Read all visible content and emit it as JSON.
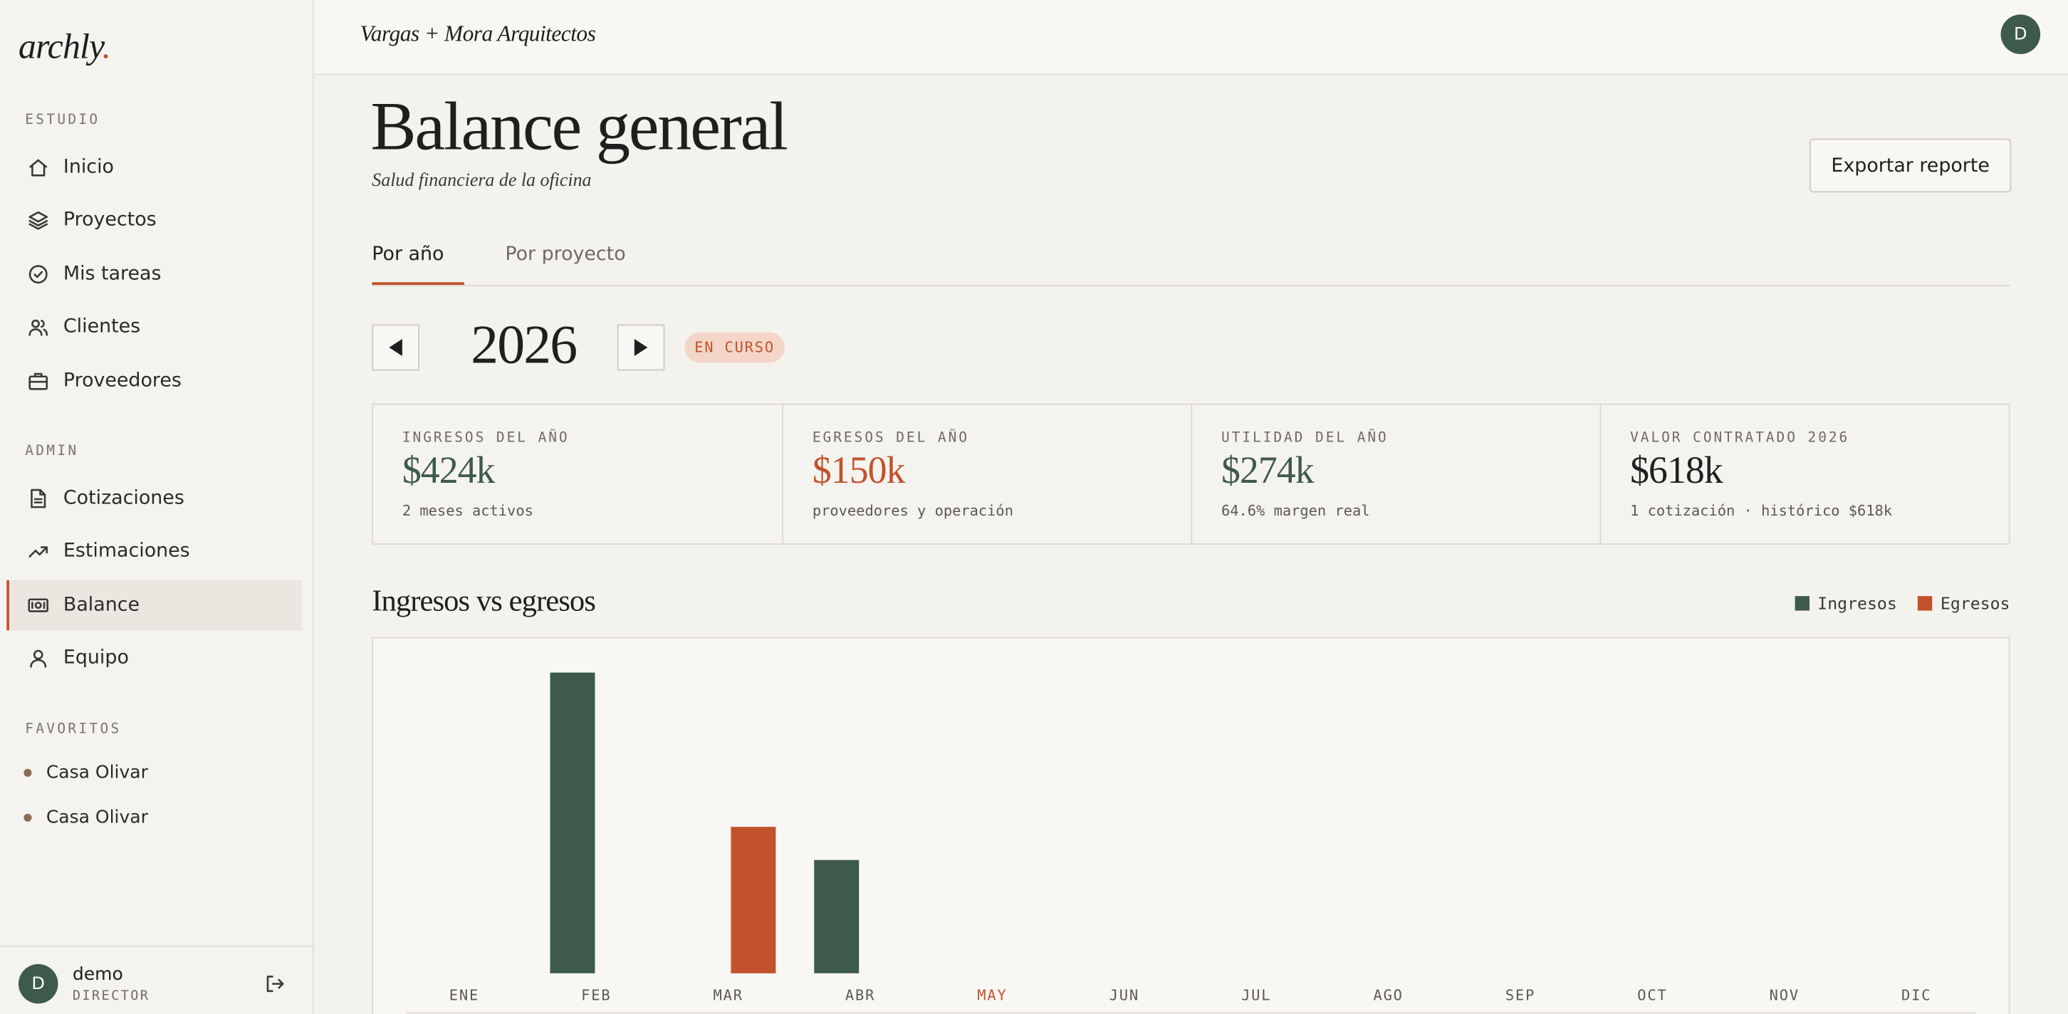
{
  "brand": "archly",
  "brand_mark": ".",
  "sidebar": {
    "sections": [
      {
        "title": "ESTUDIO",
        "items": [
          "Inicio",
          "Proyectos",
          "Mis tareas",
          "Clientes",
          "Proveedores"
        ]
      },
      {
        "title": "ADMIN",
        "items": [
          "Cotizaciones",
          "Estimaciones",
          "Balance",
          "Equipo"
        ]
      },
      {
        "title": "FAVORITOS",
        "items": [
          "Casa Olivar",
          "Casa Olivar"
        ]
      }
    ],
    "user": {
      "initial": "D",
      "name": "demo",
      "role": "DIRECTOR"
    }
  },
  "header": {
    "firm": "Vargas + Mora Arquitectos",
    "avatar": "D"
  },
  "page": {
    "title": "Balance general",
    "subtitle": "Salud financiera de la oficina",
    "export": "Exportar reporte",
    "tabs": [
      "Por año",
      "Por proyecto"
    ],
    "year": "2026",
    "status": "EN CURSO"
  },
  "kpis": [
    {
      "label": "INGRESOS DEL AÑO",
      "value": "$424k",
      "note": "2 meses activos"
    },
    {
      "label": "EGRESOS DEL AÑO",
      "value": "$150k",
      "note": "proveedores y operación"
    },
    {
      "label": "UTILIDAD DEL AÑO",
      "value": "$274k",
      "note": "64.6% margen real"
    },
    {
      "label": "VALOR CONTRATADO 2026",
      "value": "$618k",
      "note": "1 cotización · histórico $618k"
    }
  ],
  "chart_data": {
    "type": "bar",
    "title": "Ingresos vs egresos",
    "categories": [
      "ENE",
      "FEB",
      "MAR",
      "ABR",
      "MAY",
      "JUN",
      "JUL",
      "AGO",
      "SEP",
      "OCT",
      "NOV",
      "DIC"
    ],
    "series": [
      {
        "name": "Ingresos",
        "color": "#3d5a4b",
        "values": [
          0,
          308,
          0,
          116,
          0,
          0,
          0,
          0,
          0,
          0,
          0,
          0
        ]
      },
      {
        "name": "Egresos",
        "color": "#c2522b",
        "values": [
          0,
          0,
          150,
          0,
          0,
          0,
          0,
          0,
          0,
          0,
          0,
          0
        ]
      }
    ],
    "current_category_index": 4,
    "highlight_color": "#c2522b",
    "legend": "top-right"
  }
}
